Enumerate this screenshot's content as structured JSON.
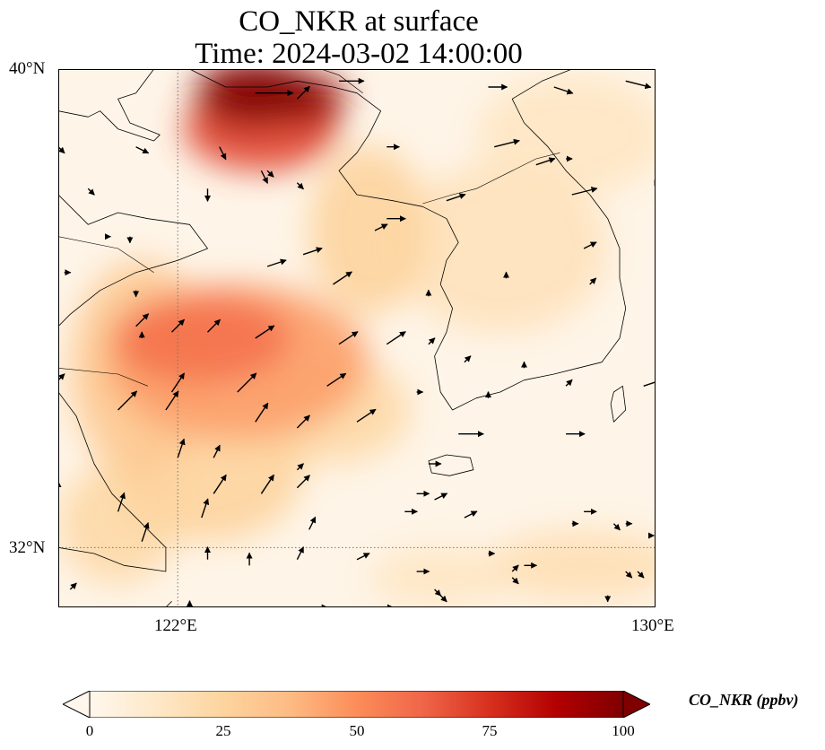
{
  "title_line1": "CO_NKR at surface",
  "title_line2": "Time: 2024-03-02 14:00:00",
  "lat_labels": [
    "40°N",
    "32°N"
  ],
  "lon_labels": [
    "122°E",
    "130°E"
  ],
  "extent": {
    "lon_min": 120,
    "lon_max": 130,
    "lat_min": 31,
    "lat_max": 40
  },
  "gridlines": {
    "lon": [
      122
    ],
    "lat": [
      32
    ]
  },
  "colorbar": {
    "label": "CO_NKR (ppbv)",
    "ticks": [
      "0",
      "25",
      "50",
      "75",
      "100"
    ],
    "vmin": 0,
    "vmax": 100,
    "extend": "both",
    "colormap": "OrRd",
    "colors": [
      "#fff7ec",
      "#fee8c8",
      "#fdd49e",
      "#fdbb84",
      "#fc8d59",
      "#ef6548",
      "#d7301f",
      "#b30000",
      "#7f0000"
    ]
  },
  "field_blobs": [
    {
      "lon": 123.3,
      "lat": 39.6,
      "value": 100,
      "rlon": 1.0,
      "rlat": 0.55
    },
    {
      "lon": 124.2,
      "lat": 39.5,
      "value": 95,
      "rlon": 0.6,
      "rlat": 0.4
    },
    {
      "lon": 123.4,
      "lat": 39.0,
      "value": 70,
      "rlon": 1.3,
      "rlat": 0.7
    },
    {
      "lon": 122.4,
      "lat": 35.5,
      "value": 58,
      "rlon": 1.5,
      "rlat": 0.75
    },
    {
      "lon": 123.0,
      "lat": 35.1,
      "value": 45,
      "rlon": 2.2,
      "rlat": 1.3
    },
    {
      "lon": 121.4,
      "lat": 35.0,
      "value": 30,
      "rlon": 1.2,
      "rlat": 1.8
    },
    {
      "lon": 125.2,
      "lat": 37.3,
      "value": 25,
      "rlon": 1.0,
      "rlat": 1.4
    },
    {
      "lon": 122.5,
      "lat": 33.3,
      "value": 25,
      "rlon": 1.6,
      "rlat": 1.2
    },
    {
      "lon": 121.0,
      "lat": 32.4,
      "value": 22,
      "rlon": 1.0,
      "rlat": 1.0
    },
    {
      "lon": 124.5,
      "lat": 34.3,
      "value": 22,
      "rlon": 1.4,
      "rlat": 0.9
    },
    {
      "lon": 127.4,
      "lat": 37.0,
      "value": 16,
      "rlon": 1.8,
      "rlat": 1.4
    },
    {
      "lon": 128.6,
      "lat": 38.9,
      "value": 14,
      "rlon": 1.6,
      "rlat": 1.0
    },
    {
      "lon": 128.8,
      "lat": 31.7,
      "value": 18,
      "rlon": 1.6,
      "rlat": 0.6
    },
    {
      "lon": 126.4,
      "lat": 31.5,
      "value": 14,
      "rlon": 1.2,
      "rlat": 0.5
    }
  ],
  "wind_vectors": [
    [
      120.0,
      38.7,
      0.1,
      -0.1
    ],
    [
      120.5,
      38.0,
      0.1,
      -0.1
    ],
    [
      121.3,
      38.7,
      0.2,
      -0.1
    ],
    [
      122.7,
      38.7,
      0.1,
      -0.2
    ],
    [
      123.3,
      39.6,
      0.6,
      0.0
    ],
    [
      124.0,
      39.5,
      0.2,
      0.2
    ],
    [
      124.7,
      39.8,
      0.4,
      0.0
    ],
    [
      127.2,
      39.7,
      0.3,
      0.0
    ],
    [
      128.3,
      39.7,
      0.3,
      -0.1
    ],
    [
      129.5,
      39.8,
      0.4,
      -0.1
    ],
    [
      123.4,
      38.3,
      0.1,
      -0.2
    ],
    [
      125.5,
      38.7,
      0.2,
      0.0
    ],
    [
      127.3,
      38.7,
      0.4,
      0.1
    ],
    [
      128.0,
      38.4,
      0.3,
      0.1
    ],
    [
      128.5,
      38.5,
      0.1,
      0.0
    ],
    [
      122.5,
      38.0,
      0.0,
      -0.2
    ],
    [
      123.5,
      38.3,
      0.1,
      -0.1
    ],
    [
      124.0,
      38.1,
      0.1,
      -0.1
    ],
    [
      125.5,
      37.5,
      0.3,
      0.0
    ],
    [
      126.5,
      37.8,
      0.3,
      0.1
    ],
    [
      128.6,
      37.9,
      0.4,
      0.1
    ],
    [
      130.0,
      38.1,
      0.0,
      0.0
    ],
    [
      120.8,
      37.2,
      0.0,
      0.0
    ],
    [
      121.2,
      37.2,
      0.0,
      -0.1
    ],
    [
      123.5,
      36.7,
      0.3,
      0.1
    ],
    [
      124.1,
      36.9,
      0.3,
      0.1
    ],
    [
      125.3,
      37.3,
      0.2,
      0.1
    ],
    [
      128.8,
      37.0,
      0.2,
      0.1
    ],
    [
      120.1,
      36.6,
      0.1,
      0.0
    ],
    [
      121.3,
      36.3,
      0.0,
      -0.1
    ],
    [
      124.6,
      36.4,
      0.3,
      0.2
    ],
    [
      126.2,
      36.2,
      0.0,
      0.1
    ],
    [
      127.5,
      36.5,
      0.0,
      0.1
    ],
    [
      128.9,
      36.4,
      0.1,
      0.1
    ],
    [
      121.3,
      35.7,
      0.2,
      0.2
    ],
    [
      121.9,
      35.6,
      0.2,
      0.2
    ],
    [
      122.5,
      35.6,
      0.2,
      0.2
    ],
    [
      123.3,
      35.5,
      0.3,
      0.2
    ],
    [
      124.7,
      35.4,
      0.3,
      0.2
    ],
    [
      125.5,
      35.4,
      0.3,
      0.2
    ],
    [
      121.4,
      35.5,
      0.0,
      0.1
    ],
    [
      126.2,
      35.4,
      0.1,
      0.1
    ],
    [
      126.8,
      35.1,
      0.1,
      0.1
    ],
    [
      127.8,
      35.0,
      0.0,
      0.1
    ],
    [
      120.0,
      34.8,
      0.1,
      0.1
    ],
    [
      121.9,
      34.6,
      0.2,
      0.3
    ],
    [
      123.0,
      34.6,
      0.3,
      0.3
    ],
    [
      124.5,
      34.7,
      0.3,
      0.2
    ],
    [
      126.0,
      34.6,
      0.1,
      0.0
    ],
    [
      127.2,
      34.5,
      0.0,
      0.1
    ],
    [
      128.5,
      34.7,
      0.1,
      0.1
    ],
    [
      129.8,
      34.7,
      0.3,
      0.1
    ],
    [
      121.0,
      34.3,
      0.3,
      0.3
    ],
    [
      121.8,
      34.3,
      0.2,
      0.3
    ],
    [
      123.3,
      34.1,
      0.2,
      0.3
    ],
    [
      124.0,
      34.0,
      0.2,
      0.2
    ],
    [
      125.0,
      34.1,
      0.3,
      0.2
    ],
    [
      126.7,
      33.9,
      0.4,
      0.0
    ],
    [
      128.5,
      33.9,
      0.3,
      0.0
    ],
    [
      122.0,
      33.5,
      0.1,
      0.3
    ],
    [
      122.6,
      33.5,
      0.1,
      0.2
    ],
    [
      124.0,
      33.3,
      0.1,
      0.1
    ],
    [
      126.2,
      33.4,
      0.2,
      0.0
    ],
    [
      120.0,
      33.0,
      0.0,
      0.1
    ],
    [
      122.6,
      32.9,
      0.2,
      0.3
    ],
    [
      123.4,
      32.9,
      0.2,
      0.3
    ],
    [
      124.0,
      33.0,
      0.2,
      0.2
    ],
    [
      126.0,
      32.9,
      0.2,
      0.0
    ],
    [
      126.8,
      32.5,
      0.2,
      0.1
    ],
    [
      128.8,
      32.6,
      0.2,
      0.0
    ],
    [
      129.3,
      32.4,
      0.1,
      -0.1
    ],
    [
      121.0,
      32.6,
      0.1,
      0.3
    ],
    [
      122.4,
      32.5,
      0.1,
      0.3
    ],
    [
      124.2,
      32.3,
      0.1,
      0.2
    ],
    [
      125.8,
      32.6,
      0.2,
      0.0
    ],
    [
      126.3,
      32.8,
      0.2,
      0.1
    ],
    [
      128.6,
      32.4,
      0.1,
      0.0
    ],
    [
      129.5,
      32.4,
      0.1,
      0.0
    ],
    [
      129.9,
      32.2,
      0.0,
      0.0
    ],
    [
      121.4,
      32.1,
      0.1,
      0.3
    ],
    [
      122.5,
      31.8,
      0.0,
      0.2
    ],
    [
      123.2,
      31.7,
      0.0,
      0.2
    ],
    [
      124.0,
      31.8,
      0.1,
      0.2
    ],
    [
      125.0,
      31.8,
      0.2,
      0.1
    ],
    [
      127.2,
      31.9,
      0.1,
      0.0
    ],
    [
      127.8,
      31.7,
      0.2,
      0.0
    ],
    [
      129.5,
      31.6,
      0.1,
      -0.1
    ],
    [
      120.2,
      31.3,
      0.1,
      0.1
    ],
    [
      122.2,
      30.9,
      0.0,
      0.2
    ],
    [
      124.4,
      31.0,
      0.1,
      0.0
    ],
    [
      126.0,
      31.6,
      0.2,
      0.0
    ],
    [
      126.4,
      31.2,
      0.1,
      -0.1
    ],
    [
      127.6,
      31.5,
      0.1,
      -0.1
    ],
    [
      129.2,
      31.2,
      0.0,
      -0.1
    ],
    [
      129.7,
      31.6,
      0.1,
      -0.1
    ],
    [
      125.5,
      31.0,
      0.1,
      0.0
    ],
    [
      126.3,
      31.3,
      0.1,
      -0.1
    ],
    [
      128.0,
      31.0,
      0.0,
      -0.1
    ],
    [
      127.6,
      31.6,
      0.1,
      0.1
    ]
  ],
  "coastlines": [
    [
      [
        121.6,
        40.0
      ],
      [
        121.3,
        39.6
      ],
      [
        121.0,
        39.5
      ],
      [
        121.2,
        39.1
      ],
      [
        121.7,
        38.9
      ],
      [
        121.6,
        38.8
      ],
      [
        121.0,
        39.0
      ],
      [
        120.7,
        39.3
      ],
      [
        120.5,
        39.2
      ],
      [
        120.0,
        39.3
      ]
    ],
    [
      [
        121.6,
        40.0
      ],
      [
        122.2,
        40.0
      ],
      [
        122.8,
        39.7
      ],
      [
        123.5,
        39.7
      ],
      [
        124.0,
        39.8
      ],
      [
        124.6,
        39.7
      ],
      [
        125.0,
        39.6
      ],
      [
        125.4,
        39.3
      ],
      [
        125.2,
        38.9
      ],
      [
        125.0,
        38.6
      ],
      [
        124.7,
        38.3
      ],
      [
        125.0,
        37.9
      ],
      [
        125.6,
        37.8
      ],
      [
        126.1,
        37.7
      ],
      [
        126.5,
        37.5
      ],
      [
        126.7,
        37.1
      ],
      [
        126.5,
        36.8
      ],
      [
        126.4,
        36.4
      ],
      [
        126.6,
        36.0
      ],
      [
        126.5,
        35.6
      ],
      [
        126.3,
        35.2
      ],
      [
        126.4,
        34.6
      ],
      [
        126.6,
        34.3
      ],
      [
        127.0,
        34.5
      ],
      [
        127.4,
        34.6
      ],
      [
        127.8,
        34.8
      ],
      [
        128.3,
        34.9
      ],
      [
        128.7,
        35.0
      ],
      [
        129.1,
        35.1
      ],
      [
        129.4,
        35.5
      ],
      [
        129.5,
        36.0
      ],
      [
        129.4,
        36.5
      ],
      [
        129.4,
        37.0
      ],
      [
        129.2,
        37.5
      ],
      [
        128.9,
        37.9
      ],
      [
        128.5,
        38.3
      ],
      [
        128.2,
        38.7
      ],
      [
        127.8,
        39.1
      ],
      [
        127.6,
        39.5
      ],
      [
        128.1,
        39.8
      ],
      [
        128.6,
        40.0
      ]
    ],
    [
      [
        120.0,
        37.9
      ],
      [
        120.5,
        37.4
      ],
      [
        121.0,
        37.6
      ],
      [
        121.5,
        37.5
      ],
      [
        122.2,
        37.4
      ],
      [
        122.5,
        37.0
      ],
      [
        122.0,
        36.8
      ],
      [
        121.3,
        36.6
      ],
      [
        120.7,
        36.3
      ],
      [
        120.2,
        35.9
      ],
      [
        120.0,
        35.7
      ]
    ],
    [
      [
        120.0,
        34.6
      ],
      [
        120.3,
        34.2
      ],
      [
        120.6,
        33.4
      ],
      [
        120.9,
        32.9
      ],
      [
        121.4,
        32.4
      ],
      [
        121.8,
        32.0
      ],
      [
        121.8,
        31.6
      ],
      [
        121.1,
        31.7
      ],
      [
        120.6,
        31.9
      ],
      [
        120.0,
        32.0
      ]
    ],
    [
      [
        120.2,
        31.0
      ],
      [
        120.8,
        30.9
      ],
      [
        121.3,
        30.8
      ],
      [
        121.7,
        30.9
      ],
      [
        121.9,
        31.1
      ]
    ],
    [
      [
        126.2,
        33.45
      ],
      [
        126.5,
        33.55
      ],
      [
        126.9,
        33.5
      ],
      [
        126.95,
        33.3
      ],
      [
        126.55,
        33.2
      ],
      [
        126.25,
        33.25
      ],
      [
        126.2,
        33.45
      ]
    ],
    [
      [
        129.3,
        34.6
      ],
      [
        129.45,
        34.7
      ],
      [
        129.5,
        34.3
      ],
      [
        129.3,
        34.1
      ],
      [
        129.25,
        34.4
      ],
      [
        129.3,
        34.6
      ]
    ]
  ],
  "borders": [
    [
      [
        124.4,
        40.0
      ],
      [
        124.7,
        39.9
      ],
      [
        125.1,
        39.6
      ]
    ],
    [
      [
        126.1,
        37.75
      ],
      [
        126.6,
        37.9
      ],
      [
        127.0,
        38.0
      ],
      [
        127.6,
        38.3
      ],
      [
        128.0,
        38.5
      ],
      [
        128.4,
        38.6
      ]
    ],
    [
      [
        120.0,
        37.2
      ],
      [
        121.0,
        37.0
      ],
      [
        121.6,
        36.6
      ]
    ],
    [
      [
        120.0,
        35.0
      ],
      [
        121.0,
        34.9
      ],
      [
        121.5,
        34.7
      ]
    ]
  ]
}
